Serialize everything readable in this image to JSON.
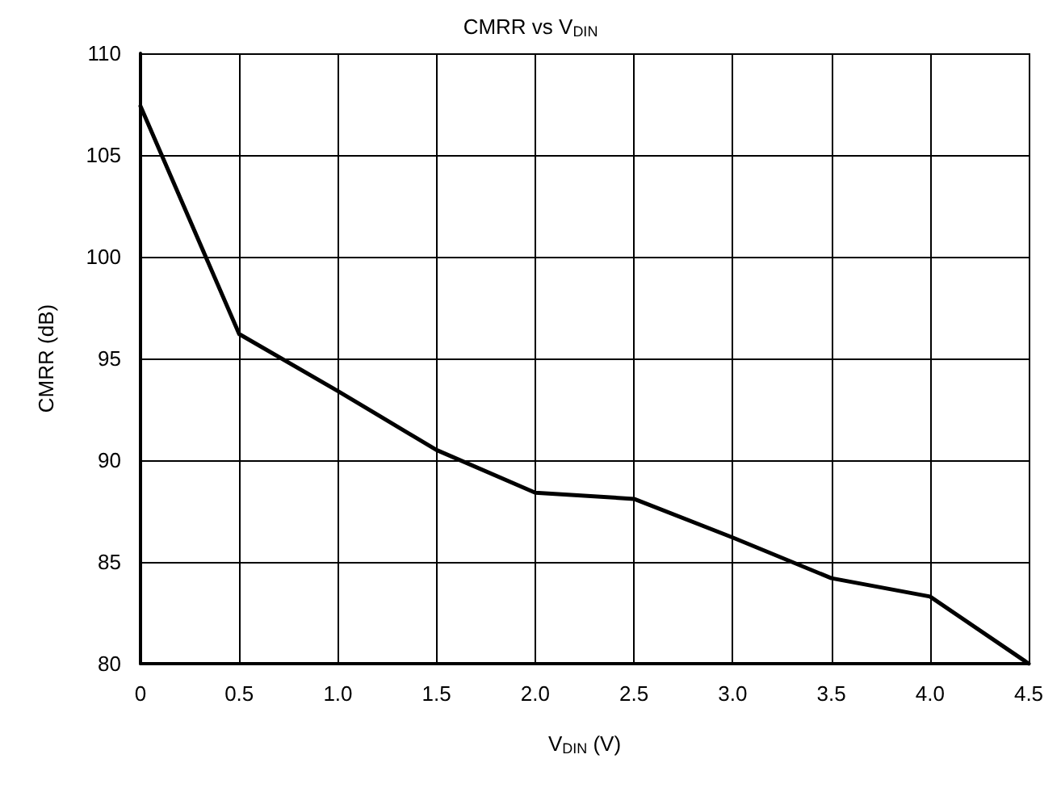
{
  "chart_data": {
    "type": "line",
    "title": "CMRR vs V$_{DIN}$",
    "xlabel": "V$_{DIN}$ (V)",
    "ylabel": "CMRR (dB)",
    "x": [
      0,
      0.5,
      1.0,
      1.5,
      2.0,
      2.5,
      3.0,
      3.5,
      4.0,
      4.5
    ],
    "series": [
      {
        "color": "#000000",
        "values": [
          107.4,
          96.2,
          93.4,
          90.5,
          88.4,
          88.1,
          86.2,
          84.2,
          83.3,
          80
        ]
      }
    ],
    "xlim": [
      0,
      4.5
    ],
    "xticks": [
      0,
      0.5,
      {
        "value": 1,
        "label": "1.0"
      },
      1.5,
      {
        "value": 2,
        "label": "2.0"
      },
      2.5,
      {
        "value": 3,
        "label": "3.0"
      },
      3.5,
      {
        "value": 4,
        "label": "4.0"
      },
      4.5
    ],
    "ylim": [
      80,
      110
    ],
    "yticks": [
      80,
      85,
      90,
      95,
      100,
      105,
      110
    ],
    "grid": true,
    "marker": "none",
    "line_style": "solid"
  }
}
